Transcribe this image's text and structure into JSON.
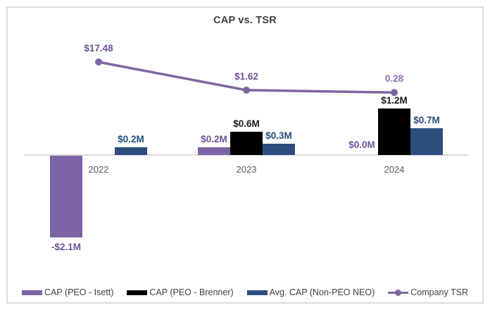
{
  "title": "CAP vs. TSR",
  "colors": {
    "frame_border": "#d9d9d9",
    "axis": "#d9d9d9",
    "title_text": "#404040",
    "category_text": "#595959",
    "legend_text": "#404040"
  },
  "chart_data": {
    "type": "bar",
    "title": "CAP vs. TSR",
    "categories": [
      "2022",
      "2023",
      "2024"
    ],
    "series": [
      {
        "name": "CAP (PEO - Isett)",
        "type": "bar",
        "color": "#7B63A5",
        "label_color": "#6B539B",
        "values": [
          -2.1,
          0.2,
          0.0
        ],
        "labels": [
          "-$2.1M",
          "$0.2M",
          "$0.0M"
        ]
      },
      {
        "name": "CAP (PEO - Brenner)",
        "type": "bar",
        "color": "#000000",
        "label_color": "#1a1a1a",
        "values": [
          null,
          0.6,
          1.2
        ],
        "labels": [
          "",
          "$0.6M",
          "$1.2M"
        ]
      },
      {
        "name": "Avg. CAP (Non-PEO NEO)",
        "type": "bar",
        "color": "#2B4E7E",
        "label_color": "#1F4E79",
        "values": [
          0.2,
          0.3,
          0.7
        ],
        "labels": [
          "$0.2M",
          "$0.3M",
          "$0.7M"
        ]
      },
      {
        "name": "Company TSR",
        "type": "line",
        "color": "#8064A2",
        "label_color": "#6C5394",
        "label_colors": [
          "#6C5394",
          "#6C5394",
          "#8C70B4"
        ],
        "values": [
          17.48,
          1.62,
          0.28
        ],
        "labels": [
          "$17.48",
          "$1.62",
          "0.28"
        ]
      }
    ],
    "bar_value_unit": "$M",
    "gridlines": false,
    "y_axis_labels_visible": false,
    "legend_position": "bottom"
  }
}
